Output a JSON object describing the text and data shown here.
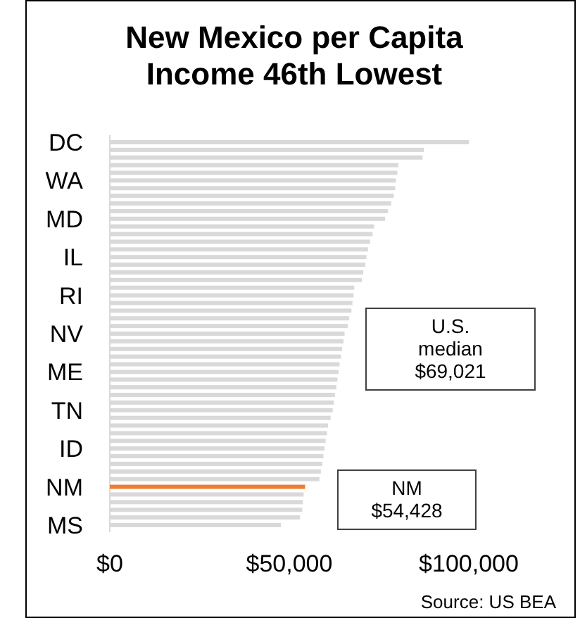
{
  "chart_data": {
    "type": "bar",
    "orientation": "horizontal",
    "title": "New Mexico per Capita\nIncome 46th Lowest",
    "categories": [
      "DC",
      null,
      null,
      null,
      null,
      "WA",
      null,
      null,
      null,
      null,
      "MD",
      null,
      null,
      null,
      null,
      "IL",
      null,
      null,
      null,
      null,
      "RI",
      null,
      null,
      null,
      null,
      "NV",
      null,
      null,
      null,
      null,
      "ME",
      null,
      null,
      null,
      null,
      "TN",
      null,
      null,
      null,
      null,
      "ID",
      null,
      null,
      null,
      null,
      "NM",
      null,
      null,
      null,
      null,
      "MS"
    ],
    "values": [
      100000,
      87500,
      87100,
      80400,
      80100,
      79700,
      79500,
      79100,
      78400,
      77500,
      76700,
      73600,
      73200,
      72500,
      71900,
      71500,
      71200,
      70600,
      70200,
      68100,
      67900,
      67600,
      67300,
      66700,
      66300,
      65400,
      65100,
      64700,
      64400,
      64000,
      63700,
      63400,
      63100,
      62700,
      62400,
      62100,
      61500,
      60800,
      60500,
      60100,
      59800,
      59500,
      59200,
      58800,
      58400,
      54400,
      54000,
      53800,
      53600,
      53000,
      47700
    ],
    "colors": [
      "#d9d9d9",
      "#d9d9d9",
      "#d9d9d9",
      "#d9d9d9",
      "#d9d9d9",
      "#d9d9d9",
      "#d9d9d9",
      "#d9d9d9",
      "#d9d9d9",
      "#d9d9d9",
      "#d9d9d9",
      "#d9d9d9",
      "#d9d9d9",
      "#d9d9d9",
      "#d9d9d9",
      "#d9d9d9",
      "#d9d9d9",
      "#d9d9d9",
      "#d9d9d9",
      "#d9d9d9",
      "#d9d9d9",
      "#d9d9d9",
      "#d9d9d9",
      "#d9d9d9",
      "#d9d9d9",
      "#d9d9d9",
      "#d9d9d9",
      "#d9d9d9",
      "#d9d9d9",
      "#d9d9d9",
      "#d9d9d9",
      "#d9d9d9",
      "#d9d9d9",
      "#d9d9d9",
      "#d9d9d9",
      "#d9d9d9",
      "#d9d9d9",
      "#d9d9d9",
      "#d9d9d9",
      "#d9d9d9",
      "#d9d9d9",
      "#d9d9d9",
      "#d9d9d9",
      "#d9d9d9",
      "#d9d9d9",
      "#ed7d31",
      "#d9d9d9",
      "#d9d9d9",
      "#d9d9d9",
      "#d9d9d9",
      "#d9d9d9"
    ],
    "xlim": [
      0,
      100000
    ],
    "xticks": [
      {
        "value": 0,
        "label": "$0"
      },
      {
        "value": 50000,
        "label": "$50,000"
      },
      {
        "value": 100000,
        "label": "$100,000"
      }
    ],
    "grid": false,
    "annotations": [
      "U.S.\nmedian\n$69,021",
      "NM\n$54,428",
      "Source: US BEA"
    ]
  }
}
